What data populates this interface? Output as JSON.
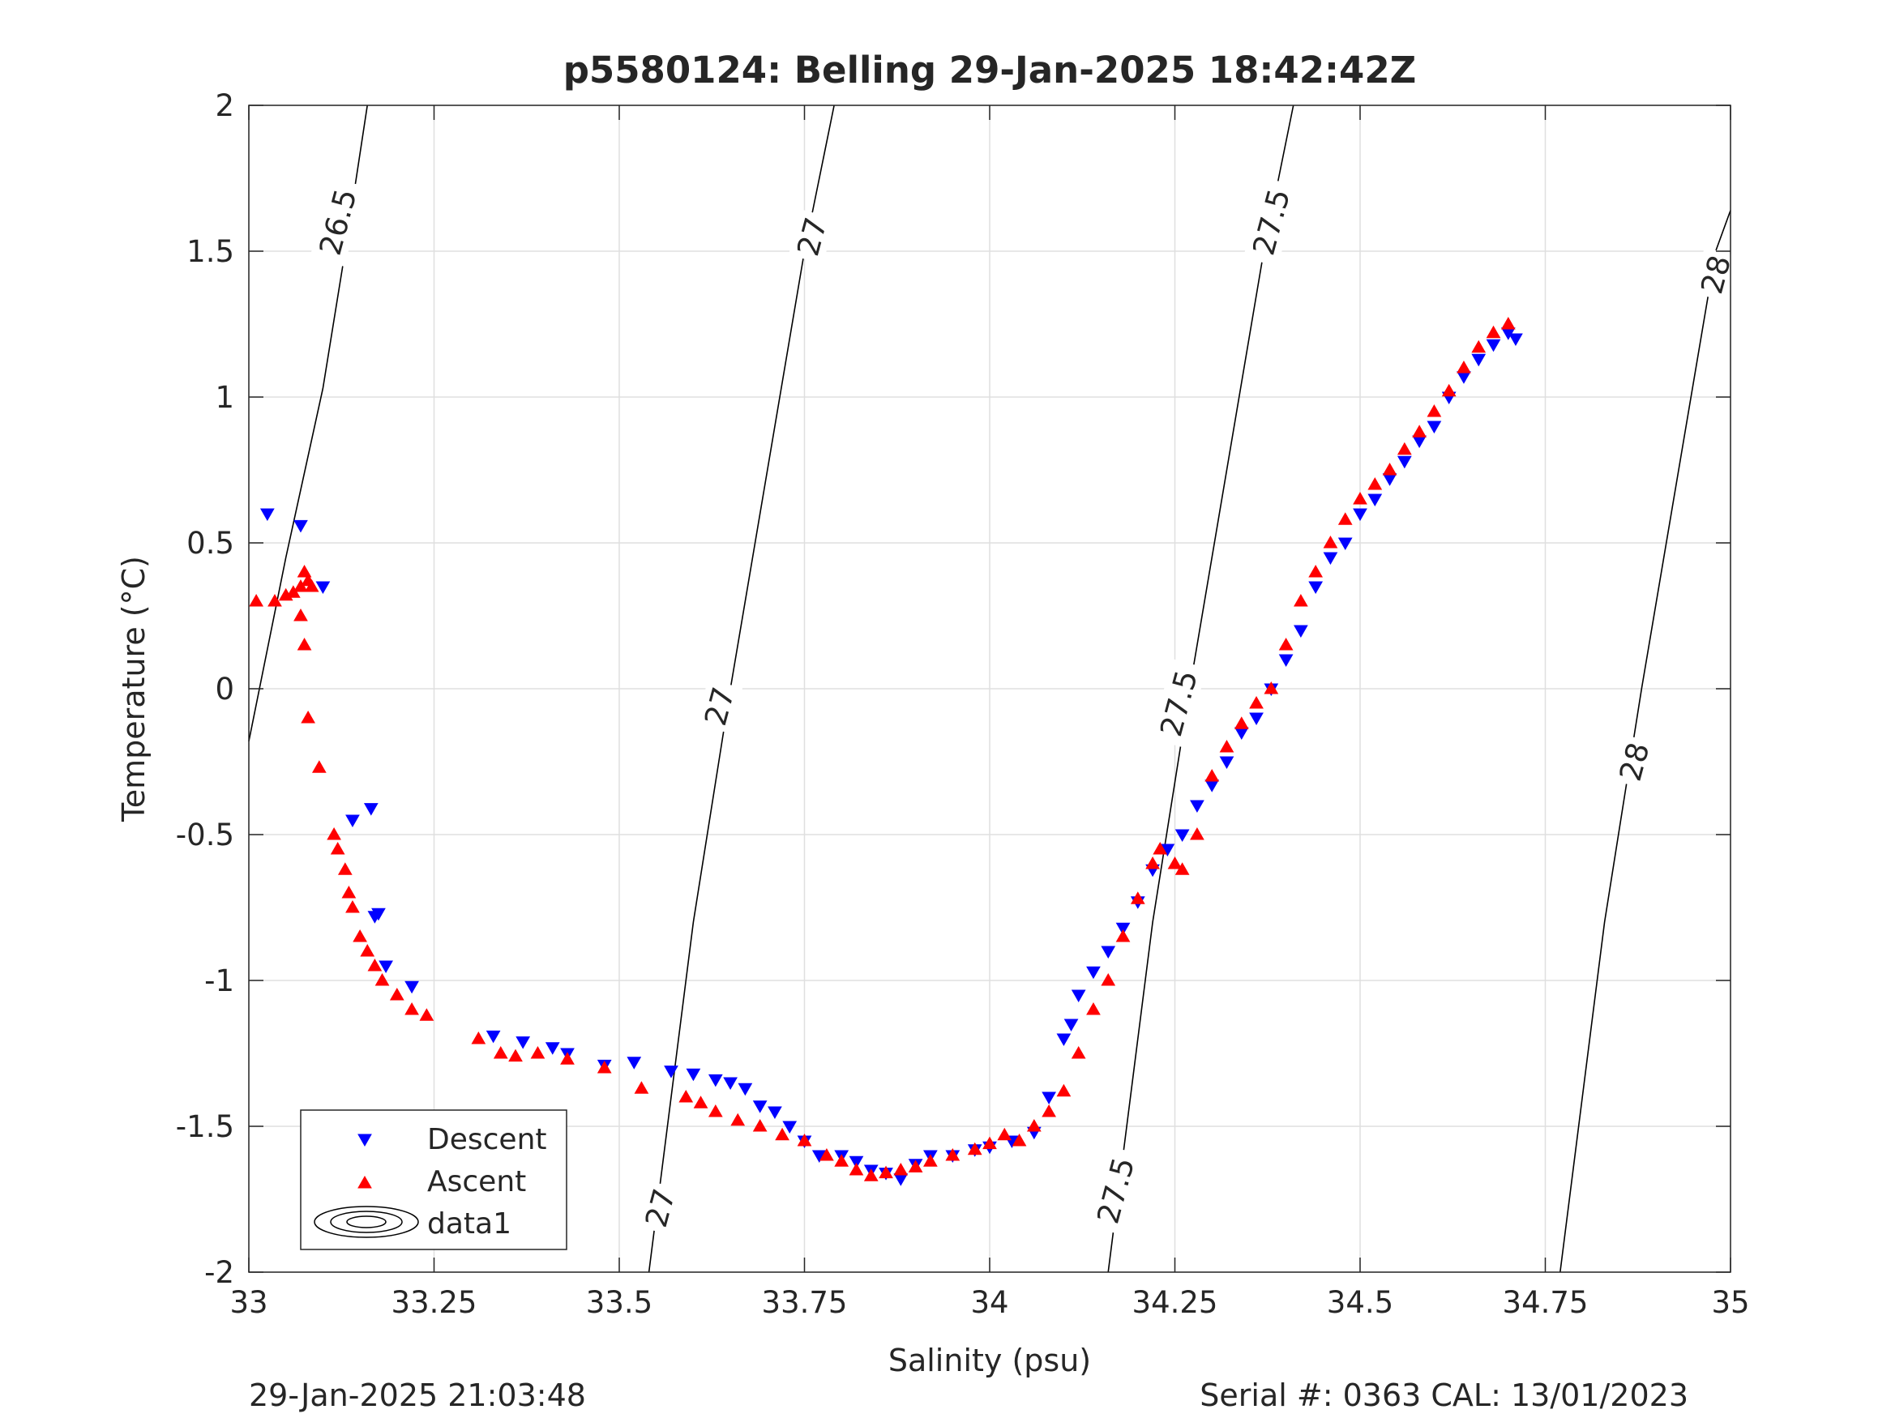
{
  "chart_data": {
    "type": "scatter",
    "title": "p5580124: Belling 29-Jan-2025 18:42:42Z",
    "xlabel": "Salinity (psu)",
    "ylabel": "Temperature (°C)",
    "xlim": [
      33,
      35
    ],
    "ylim": [
      -2,
      2
    ],
    "xticks": [
      33,
      33.25,
      33.5,
      33.75,
      34,
      34.25,
      34.5,
      34.75,
      35
    ],
    "xtick_labels": [
      "33",
      "33.25",
      "33.5",
      "33.75",
      "34",
      "34.25",
      "34.5",
      "34.75",
      "35"
    ],
    "yticks": [
      -2,
      -1.5,
      -1,
      -0.5,
      0,
      0.5,
      1,
      1.5,
      2
    ],
    "ytick_labels": [
      "-2",
      "-1.5",
      "-1",
      "-0.5",
      "0",
      "0.5",
      "1",
      "1.5",
      "2"
    ],
    "grid": true,
    "legend": {
      "position": "bottom-left",
      "entries": [
        "Descent",
        "Ascent",
        "data1"
      ]
    },
    "footer_left": "29-Jan-2025 21:03:48",
    "footer_right": "Serial #: 0363  CAL: 13/01/2023",
    "series": [
      {
        "name": "Descent",
        "marker": "triangle-down",
        "color": "#0000ff",
        "x": [
          33.025,
          33.07,
          33.1,
          33.165,
          33.14,
          33.175,
          33.17,
          33.185,
          33.22,
          33.33,
          33.37,
          33.41,
          33.43,
          33.48,
          33.52,
          33.57,
          33.6,
          33.63,
          33.65,
          33.67,
          33.69,
          33.71,
          33.73,
          33.75,
          33.77,
          33.8,
          33.82,
          33.84,
          33.86,
          33.88,
          33.9,
          33.92,
          33.95,
          33.98,
          34.0,
          34.03,
          34.06,
          34.08,
          34.1,
          34.11,
          34.12,
          34.14,
          34.16,
          34.18,
          34.2,
          34.22,
          34.24,
          34.26,
          34.28,
          34.3,
          34.32,
          34.34,
          34.36,
          34.38,
          34.4,
          34.42,
          34.44,
          34.46,
          34.48,
          34.5,
          34.52,
          34.54,
          34.56,
          34.58,
          34.6,
          34.62,
          34.64,
          34.66,
          34.68,
          34.7,
          34.71
        ],
        "y": [
          0.6,
          0.56,
          0.35,
          -0.41,
          -0.45,
          -0.77,
          -0.78,
          -0.95,
          -1.02,
          -1.19,
          -1.21,
          -1.23,
          -1.25,
          -1.29,
          -1.28,
          -1.31,
          -1.32,
          -1.34,
          -1.35,
          -1.37,
          -1.43,
          -1.45,
          -1.5,
          -1.55,
          -1.6,
          -1.6,
          -1.62,
          -1.65,
          -1.66,
          -1.68,
          -1.63,
          -1.6,
          -1.6,
          -1.58,
          -1.57,
          -1.55,
          -1.52,
          -1.4,
          -1.2,
          -1.15,
          -1.05,
          -0.97,
          -0.9,
          -0.82,
          -0.73,
          -0.62,
          -0.55,
          -0.5,
          -0.4,
          -0.33,
          -0.25,
          -0.15,
          -0.1,
          0.0,
          0.1,
          0.2,
          0.35,
          0.45,
          0.5,
          0.6,
          0.65,
          0.72,
          0.78,
          0.85,
          0.9,
          1.0,
          1.07,
          1.13,
          1.18,
          1.22,
          1.2
        ]
      },
      {
        "name": "Ascent",
        "marker": "triangle-up",
        "color": "#ff0000",
        "x": [
          33.01,
          33.035,
          33.05,
          33.06,
          33.07,
          33.075,
          33.08,
          33.085,
          33.07,
          33.075,
          33.08,
          33.095,
          33.115,
          33.12,
          33.13,
          33.135,
          33.14,
          33.15,
          33.16,
          33.17,
          33.18,
          33.2,
          33.22,
          33.24,
          33.31,
          33.34,
          33.36,
          33.39,
          33.43,
          33.48,
          33.53,
          33.59,
          33.61,
          33.63,
          33.66,
          33.69,
          33.72,
          33.75,
          33.78,
          33.8,
          33.82,
          33.84,
          33.86,
          33.88,
          33.9,
          33.92,
          33.95,
          33.98,
          34.0,
          34.02,
          34.04,
          34.06,
          34.08,
          34.1,
          34.12,
          34.14,
          34.16,
          34.18,
          34.2,
          34.22,
          34.23,
          34.25,
          34.26,
          34.28,
          34.3,
          34.32,
          34.34,
          34.36,
          34.38,
          34.4,
          34.42,
          34.44,
          34.46,
          34.48,
          34.5,
          34.52,
          34.54,
          34.56,
          34.58,
          34.6,
          34.62,
          34.64,
          34.66,
          34.68,
          34.7
        ],
        "y": [
          0.3,
          0.3,
          0.32,
          0.33,
          0.35,
          0.4,
          0.37,
          0.35,
          0.25,
          0.15,
          -0.1,
          -0.27,
          -0.5,
          -0.55,
          -0.62,
          -0.7,
          -0.75,
          -0.85,
          -0.9,
          -0.95,
          -1.0,
          -1.05,
          -1.1,
          -1.12,
          -1.2,
          -1.25,
          -1.26,
          -1.25,
          -1.27,
          -1.3,
          -1.37,
          -1.4,
          -1.42,
          -1.45,
          -1.48,
          -1.5,
          -1.53,
          -1.55,
          -1.6,
          -1.62,
          -1.65,
          -1.67,
          -1.66,
          -1.65,
          -1.64,
          -1.62,
          -1.6,
          -1.58,
          -1.56,
          -1.53,
          -1.55,
          -1.5,
          -1.45,
          -1.38,
          -1.25,
          -1.1,
          -1.0,
          -0.85,
          -0.72,
          -0.6,
          -0.55,
          -0.6,
          -0.62,
          -0.5,
          -0.3,
          -0.2,
          -0.12,
          -0.05,
          0.0,
          0.15,
          0.3,
          0.4,
          0.5,
          0.58,
          0.65,
          0.7,
          0.75,
          0.82,
          0.88,
          0.95,
          1.02,
          1.1,
          1.17,
          1.22,
          1.25
        ]
      },
      {
        "name": "data1",
        "type": "contour",
        "color": "#000000",
        "lines": [
          {
            "level": "26.5",
            "x": [
              33.0,
              33.05,
              33.1,
              33.13,
              33.16
            ],
            "y": [
              -0.18,
              0.45,
              1.03,
              1.5,
              2.0
            ]
          },
          {
            "level": "27",
            "x": [
              33.54,
              33.6,
              33.65,
              33.7,
              33.75,
              33.79
            ],
            "y": [
              -2.0,
              -0.8,
              0.0,
              0.75,
              1.5,
              2.0
            ]
          },
          {
            "level": "27.5",
            "x": [
              34.16,
              34.22,
              34.27,
              34.32,
              34.37,
              34.41
            ],
            "y": [
              -2.0,
              -0.8,
              0.0,
              0.75,
              1.5,
              2.0
            ]
          },
          {
            "level": "28",
            "x": [
              34.77,
              34.83,
              34.88,
              34.93,
              34.98,
              35.0
            ],
            "y": [
              -2.0,
              -0.8,
              0.0,
              0.75,
              1.5,
              1.64
            ]
          }
        ],
        "labels": [
          {
            "text": "26.5",
            "x": 33.12,
            "y": 1.6
          },
          {
            "text": "27",
            "x": 33.76,
            "y": 1.55
          },
          {
            "text": "27",
            "x": 33.635,
            "y": -0.06
          },
          {
            "text": "27",
            "x": 33.555,
            "y": -1.78
          },
          {
            "text": "27.5",
            "x": 34.38,
            "y": 1.6
          },
          {
            "text": "27.5",
            "x": 34.255,
            "y": -0.05
          },
          {
            "text": "27.5",
            "x": 34.17,
            "y": -1.72
          },
          {
            "text": "28",
            "x": 34.98,
            "y": 1.42
          },
          {
            "text": "28",
            "x": 34.87,
            "y": -0.25
          }
        ]
      }
    ]
  }
}
